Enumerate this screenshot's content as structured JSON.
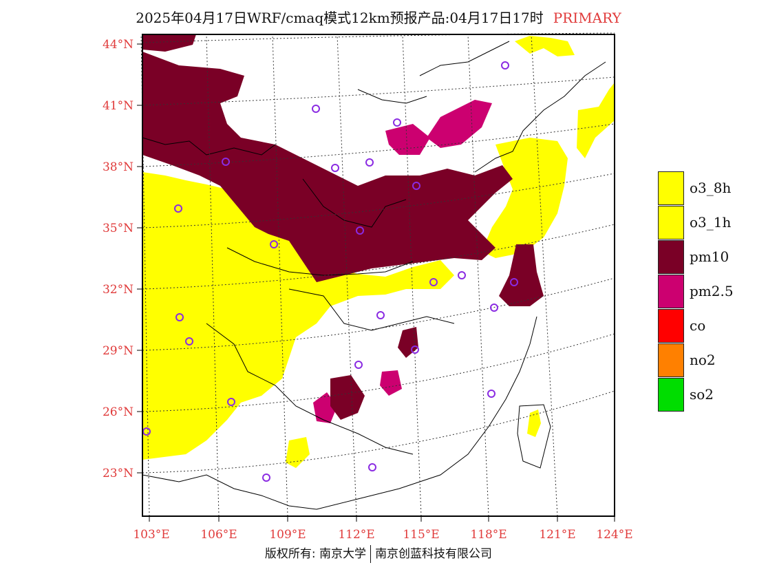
{
  "title": {
    "text": "2025年04月17日WRF/cmaq模式12km预报产品:04月17日17时",
    "tag": "PRIMARY",
    "tag_color": "#e03a3a"
  },
  "map": {
    "lat_labels": [
      "44°N",
      "41°N",
      "38°N",
      "35°N",
      "32°N",
      "29°N",
      "26°N",
      "23°N"
    ],
    "lon_labels": [
      "103°E",
      "106°E",
      "109°E",
      "112°E",
      "115°E",
      "118°E",
      "121°E",
      "124°E"
    ],
    "label_color": "#e03a3a",
    "colors": {
      "o3_8h": "#ffff00",
      "o3_1h": "#ffff00",
      "pm10": "#7a0026",
      "pm25": "#cc0070",
      "stations": "#8a2be2"
    }
  },
  "legend": [
    {
      "label": "o3_8h",
      "color": "#ffff00"
    },
    {
      "label": "o3_1h",
      "color": "#ffff00"
    },
    {
      "label": "pm10",
      "color": "#7a0026"
    },
    {
      "label": "pm2.5",
      "color": "#cc0070"
    },
    {
      "label": "co",
      "color": "#ff0000"
    },
    {
      "label": "no2",
      "color": "#ff8000"
    },
    {
      "label": "so2",
      "color": "#00dd00"
    }
  ],
  "footer": {
    "left": "版权所有: 南京大学",
    "right": "南京创蓝科技有限公司"
  }
}
